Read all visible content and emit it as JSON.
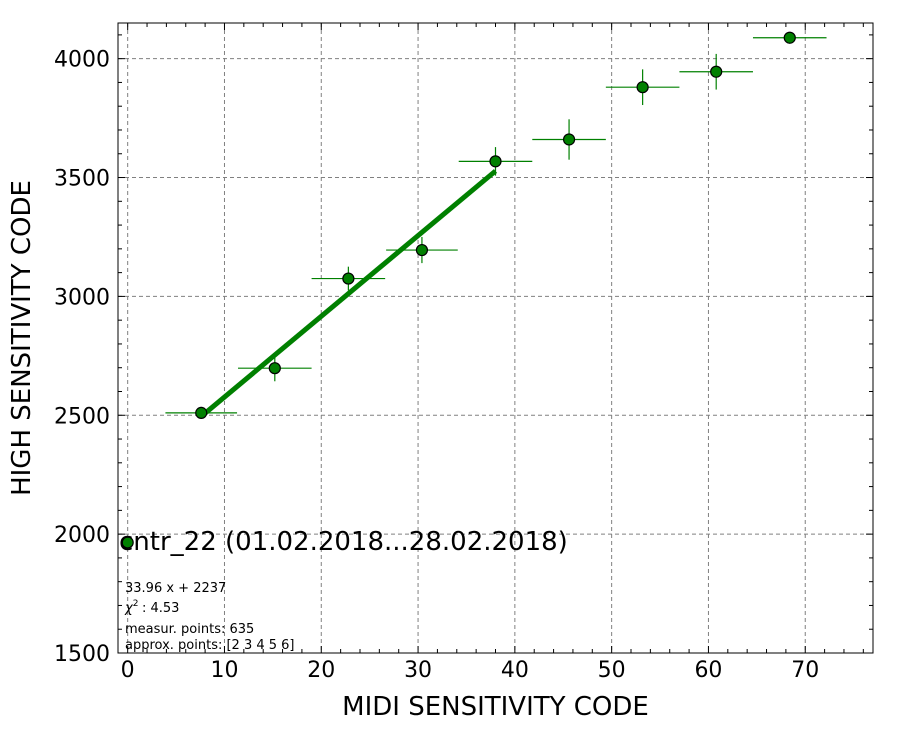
{
  "chart_data": {
    "type": "scatter",
    "title": "",
    "xlabel": "MIDI SENSITIVITY CODE",
    "ylabel": "HIGH SENSITIVITY CODE",
    "xlim": [
      -1,
      77
    ],
    "ylim": [
      1500,
      4150
    ],
    "x_ticks": [
      0,
      10,
      20,
      30,
      40,
      50,
      60,
      70
    ],
    "y_ticks": [
      1500,
      2000,
      2500,
      3000,
      3500,
      4000
    ],
    "grid": true,
    "colors": {
      "marker": "#008000",
      "marker_edge": "#000000",
      "errorbar": "#008000",
      "fit_line": "#008000",
      "grid": "#808080"
    },
    "legend": {
      "placement": "lower-left",
      "label": "cntr_22 (01.02.2018...28.02.2018)"
    },
    "series": [
      {
        "name": "cntr_22 (01.02.2018...28.02.2018)",
        "points": [
          {
            "x": 0.0,
            "y": 1965,
            "xerr": 0.0,
            "yerr": 5
          },
          {
            "x": 7.6,
            "y": 2510,
            "xerr": 3.7,
            "yerr": 25
          },
          {
            "x": 15.2,
            "y": 2698,
            "xerr": 3.8,
            "yerr": 55
          },
          {
            "x": 22.8,
            "y": 3075,
            "xerr": 3.8,
            "yerr": 50
          },
          {
            "x": 30.4,
            "y": 3195,
            "xerr": 3.7,
            "yerr": 55
          },
          {
            "x": 38.0,
            "y": 3568,
            "xerr": 3.8,
            "yerr": 60
          },
          {
            "x": 45.6,
            "y": 3660,
            "xerr": 3.8,
            "yerr": 85
          },
          {
            "x": 53.2,
            "y": 3880,
            "xerr": 3.8,
            "yerr": 75
          },
          {
            "x": 60.8,
            "y": 3945,
            "xerr": 3.8,
            "yerr": 75
          },
          {
            "x": 68.4,
            "y": 4088,
            "xerr": 3.8,
            "yerr": 0
          }
        ]
      }
    ],
    "fit": {
      "slope": 33.96,
      "intercept": 2237,
      "x_range": [
        7.6,
        38.0
      ]
    },
    "annotations": [
      "33.96 x + 2237",
      ": 4.53",
      "measur. points: 635",
      "approx. points: [2 3 4 5 6]"
    ]
  }
}
